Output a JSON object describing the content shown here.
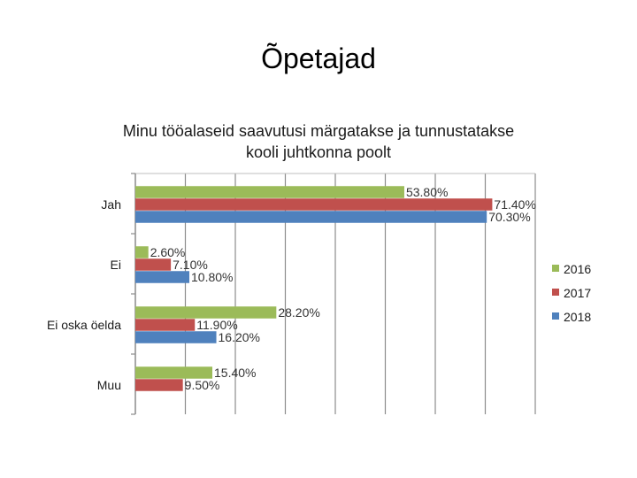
{
  "slide": {
    "title": "Õpetajad"
  },
  "chart_data": {
    "type": "bar",
    "orientation": "horizontal",
    "title_lines": [
      "Minu tööalaseid saavutusi märgatakse ja tunnustatakse",
      "kooli juhtkonna poolt"
    ],
    "categories": [
      "Jah",
      "Ei",
      "Ei oska öelda",
      "Muu"
    ],
    "series": [
      {
        "name": "2016",
        "color": "#9bbb59",
        "values": [
          53.8,
          2.6,
          28.2,
          15.4
        ],
        "labels": [
          "53.80%",
          "2.60%",
          "28.20%",
          "15.40%"
        ]
      },
      {
        "name": "2017",
        "color": "#c0504d",
        "values": [
          71.4,
          7.1,
          11.9,
          9.5
        ],
        "labels": [
          "71.40%",
          "7.10%",
          "11.90%",
          "9.50%"
        ]
      },
      {
        "name": "2018",
        "color": "#4f81bd",
        "values": [
          70.3,
          10.8,
          16.2,
          null
        ],
        "labels": [
          "70.30%",
          "10.80%",
          "16.20%",
          ""
        ]
      }
    ],
    "xlim": [
      0,
      80
    ],
    "grid": true,
    "legend_position": "right"
  }
}
